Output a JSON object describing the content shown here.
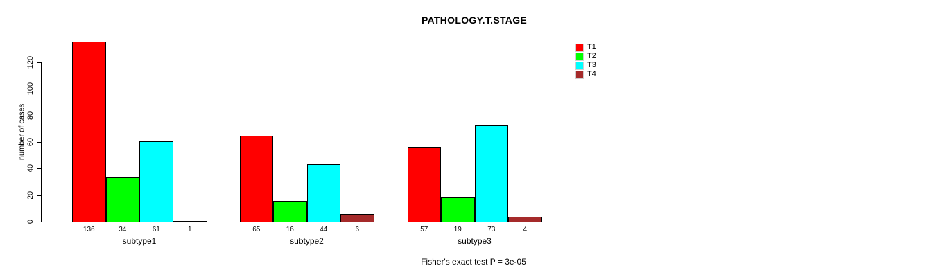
{
  "title": "PATHOLOGY.T.STAGE",
  "chart_data": {
    "type": "bar",
    "title": "PATHOLOGY.T.STAGE",
    "categories": [
      "subtype1",
      "subtype2",
      "subtype3"
    ],
    "series": [
      {
        "name": "T1",
        "color": "#ff0000",
        "values": [
          136,
          65,
          57
        ]
      },
      {
        "name": "T2",
        "color": "#00ff00",
        "values": [
          34,
          16,
          19
        ]
      },
      {
        "name": "T3",
        "color": "#00ffff",
        "values": [
          61,
          44,
          73
        ]
      },
      {
        "name": "T4",
        "color": "#a52a2a",
        "values": [
          1,
          6,
          4
        ]
      }
    ],
    "xlabel": "",
    "ylabel": "number of cases",
    "yticks": [
      0,
      20,
      40,
      60,
      80,
      100,
      120
    ],
    "ylim": [
      0,
      140
    ],
    "grid": false,
    "legend_position": "top-right",
    "bar_value_labels_shown": true,
    "grouped": true
  },
  "footer": {
    "note": "Fisher's exact test P = 3e-05"
  }
}
